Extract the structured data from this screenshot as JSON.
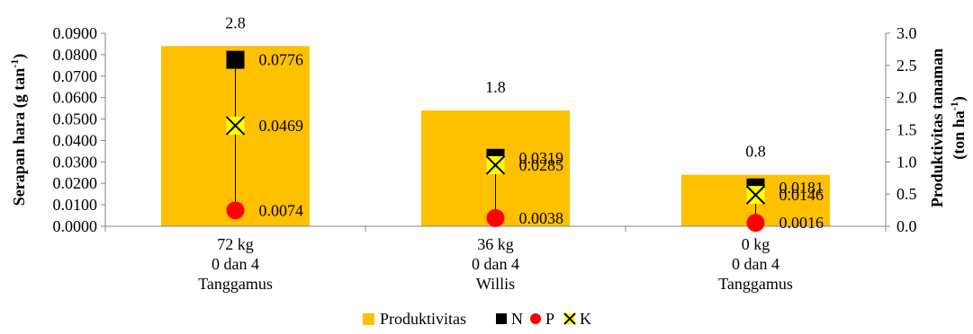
{
  "chart_data": {
    "type": "bar",
    "categories": [
      [
        "72 kg",
        "0 dan 4",
        "Tanggamus"
      ],
      [
        "36 kg",
        "0 dan 4",
        "Willis"
      ],
      [
        "0 kg",
        "0 dan 4",
        "Tanggamus"
      ]
    ],
    "bar_series": {
      "name": "Produktivitas",
      "axis": "right",
      "values": [
        2.8,
        1.8,
        0.8
      ],
      "color": "#ffc000"
    },
    "series": [
      {
        "name": "N",
        "axis": "left",
        "values": [
          0.0776,
          0.0319,
          0.0181
        ],
        "labels": [
          "0.0776",
          "0.0319",
          "0.0181"
        ],
        "marker": "square",
        "color": "#000000"
      },
      {
        "name": "P",
        "axis": "left",
        "values": [
          0.0074,
          0.0038,
          0.0016
        ],
        "labels": [
          "0.0074",
          "0.0038",
          "0.0016"
        ],
        "marker": "circle",
        "color": "#ff0000"
      },
      {
        "name": "K",
        "axis": "left",
        "values": [
          0.0469,
          0.0285,
          0.0146
        ],
        "labels": [
          "0.0469",
          "0.0285",
          "0.0146"
        ],
        "marker": "x",
        "color": "#ffff00"
      }
    ],
    "left_axis": {
      "label_main": "Serapan hara (g tan",
      "label_sup": "-1",
      "label_end": ")",
      "min": 0,
      "max": 0.09,
      "ticks": [
        "0.0000",
        "0.0100",
        "0.0200",
        "0.0300",
        "0.0400",
        "0.0500",
        "0.0600",
        "0.0700",
        "0.0800",
        "0.0900"
      ]
    },
    "right_axis": {
      "label_line1": "Produktivitas tanaman",
      "label_line2_main": "(ton ha",
      "label_line2_sup": "-1",
      "label_line2_end": ")",
      "min": 0,
      "max": 3,
      "ticks": [
        "0.0",
        "0.5",
        "1.0",
        "1.5",
        "2.0",
        "2.5",
        "3.0"
      ]
    },
    "bar_labels": [
      "2.8",
      "1.8",
      "0.8"
    ],
    "legend": {
      "position": "bottom",
      "items": [
        {
          "label": "Produktivitas",
          "marker": "bar",
          "color": "#ffc000"
        },
        {
          "label": "N",
          "marker": "square",
          "color": "#000000"
        },
        {
          "label": "P",
          "marker": "circle",
          "color": "#ff0000"
        },
        {
          "label": "K",
          "marker": "x",
          "color": "#ffff00"
        }
      ]
    },
    "grid": false
  }
}
